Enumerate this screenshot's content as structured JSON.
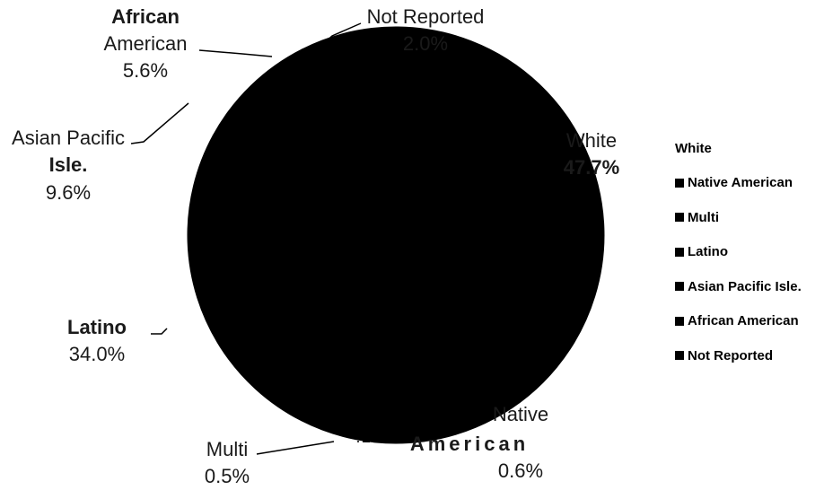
{
  "chart_data": {
    "type": "pie",
    "slices": [
      {
        "name": "White",
        "value": 47.7,
        "label_name": "White",
        "label_value": "47.7%"
      },
      {
        "name": "Native American",
        "value": 0.6,
        "label_name": "Native",
        "label_name2": "American",
        "label_value": "0.6%"
      },
      {
        "name": "Multi",
        "value": 0.5,
        "label_name": "Multi",
        "label_value": "0.5%"
      },
      {
        "name": "Latino",
        "value": 34.0,
        "label_name": "Latino",
        "label_value": "34.0%"
      },
      {
        "name": "Asian Pacific Isle.",
        "value": 9.6,
        "label_name": "Asian Pacific",
        "label_name2": "Isle.",
        "label_value": "9.6%"
      },
      {
        "name": "African American",
        "value": 5.6,
        "label_name": "African",
        "label_name2": "American",
        "label_value": "5.6%"
      },
      {
        "name": "Not Reported",
        "value": 2.0,
        "label_name": "Not Reported",
        "label_value": "2.0%"
      }
    ],
    "colors": {
      "slice_fill": "#000000",
      "background": "#ffffff"
    },
    "legend": {
      "placement": "right",
      "entries": [
        "White",
        "Native American",
        "Multi",
        "Latino",
        "Asian Pacific Isle.",
        "African American",
        "Not Reported"
      ]
    }
  }
}
